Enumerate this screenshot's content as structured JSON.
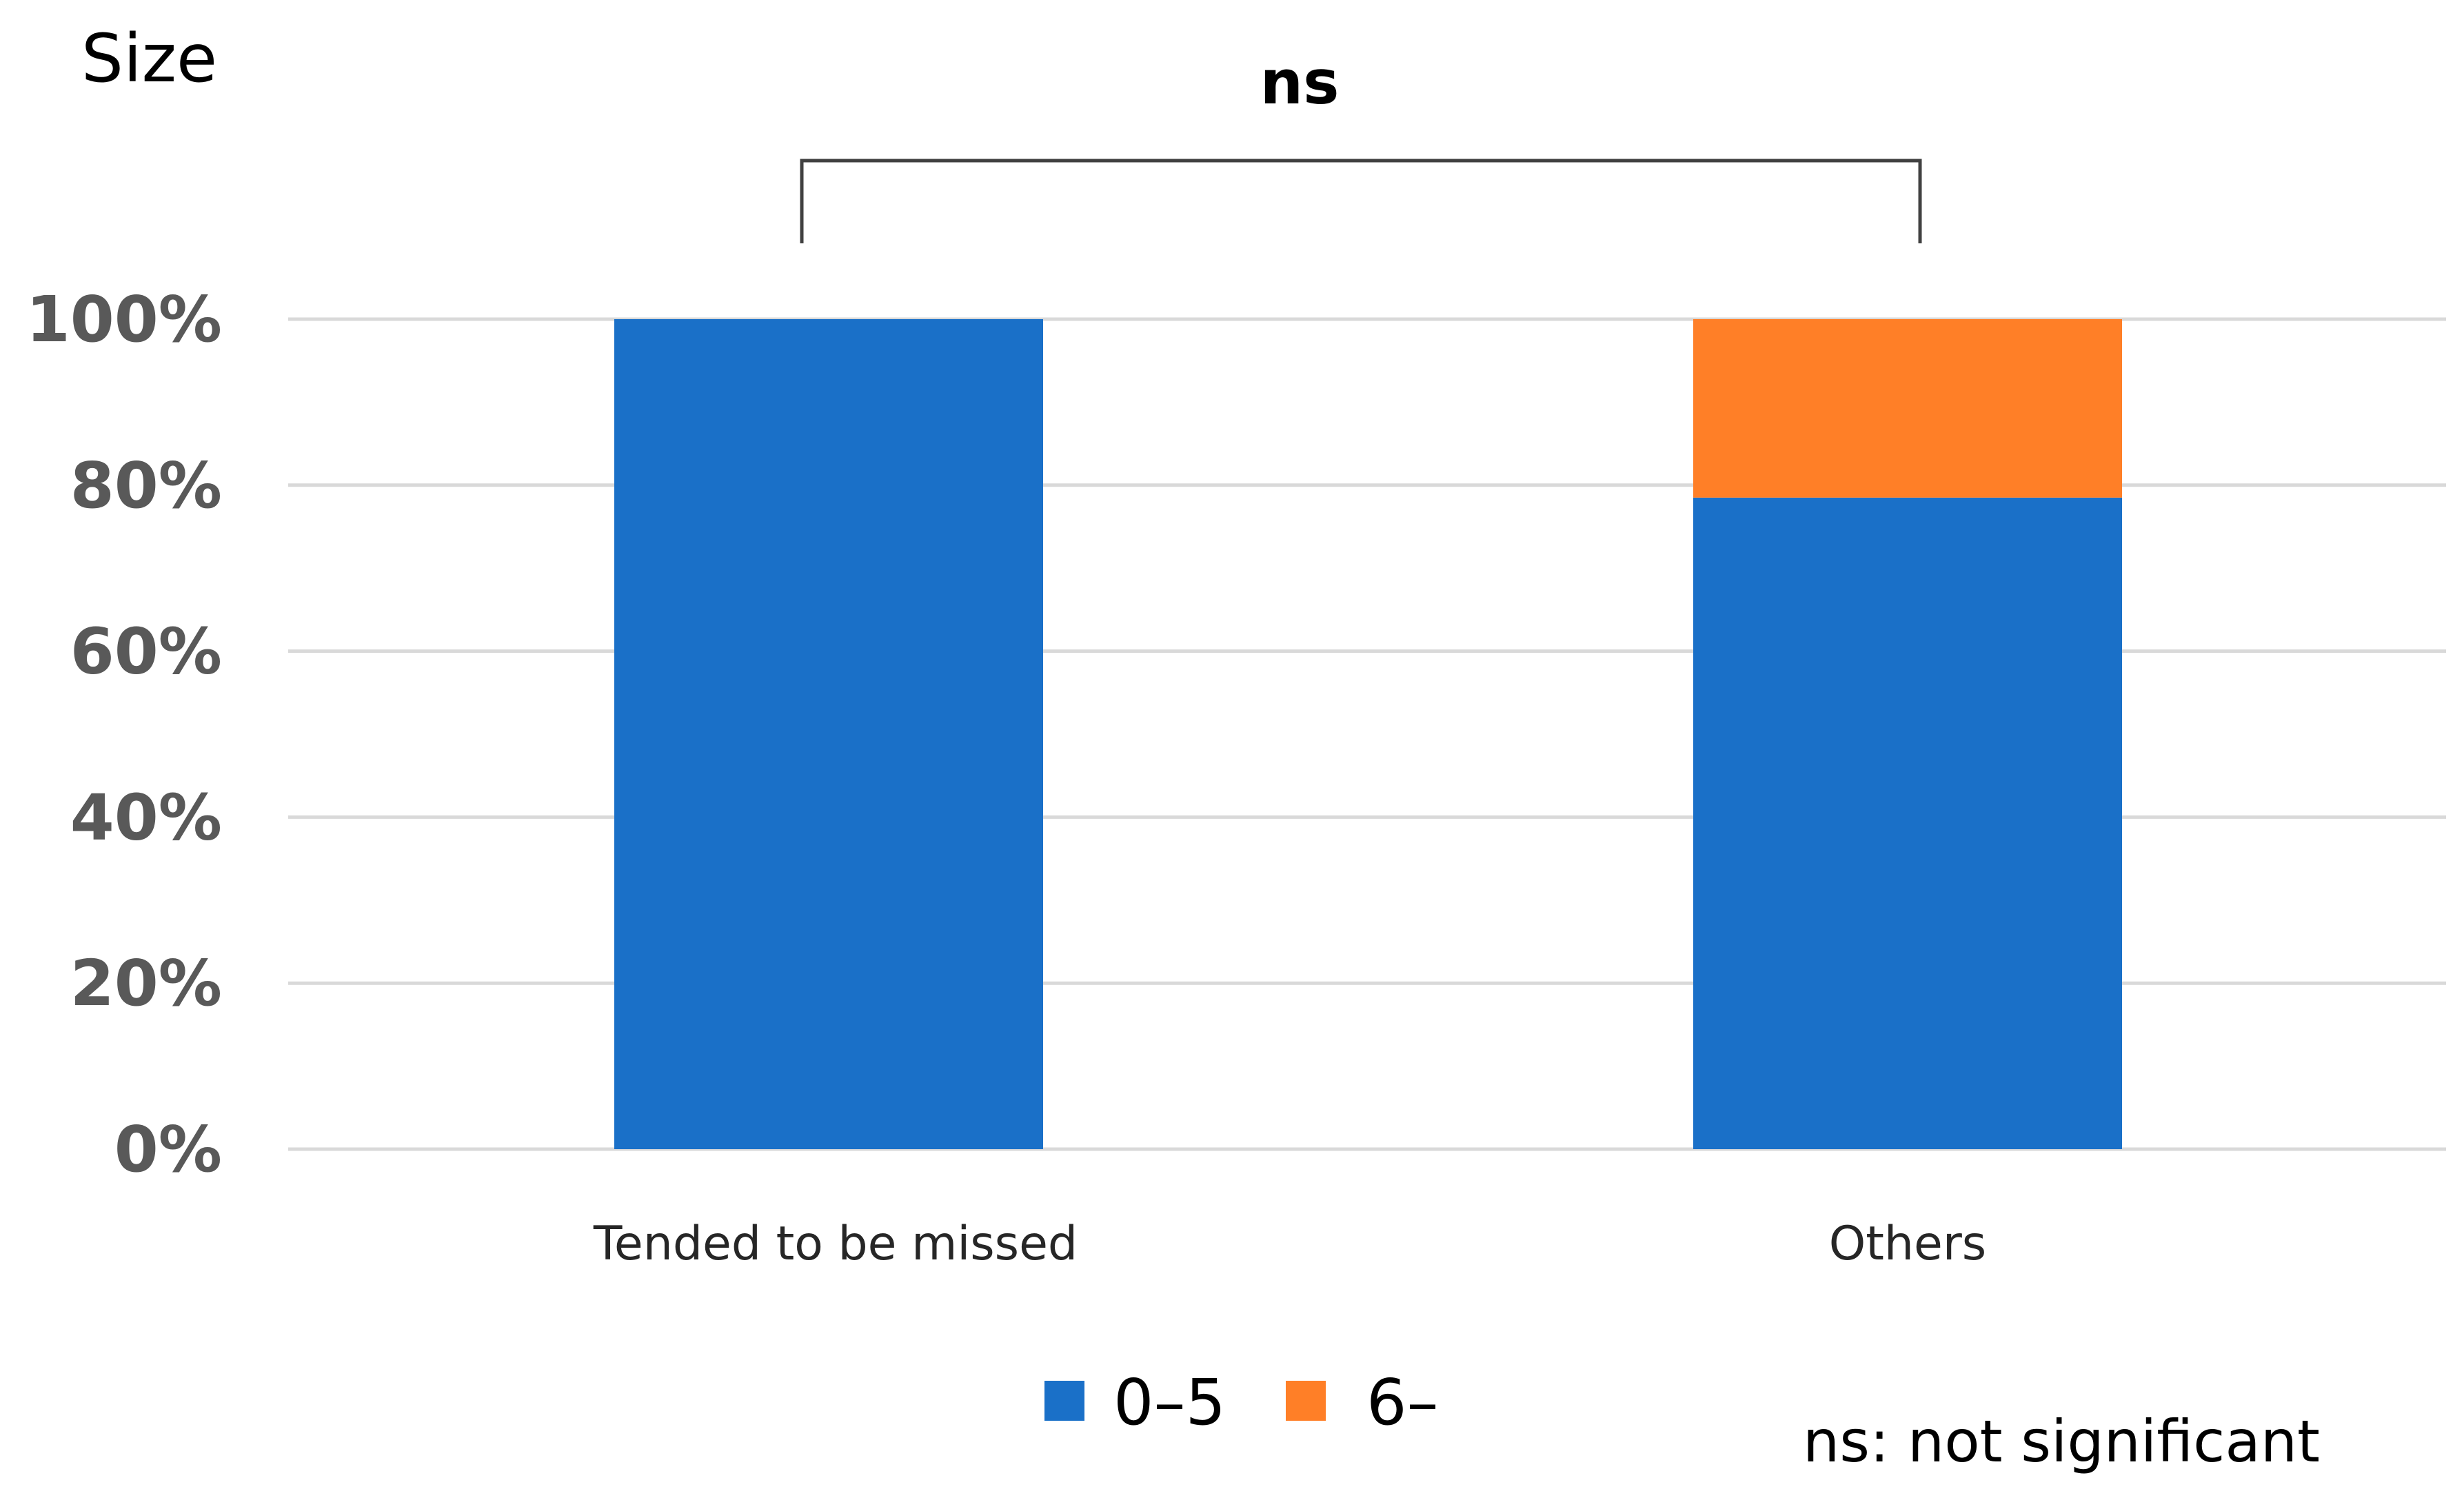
{
  "chart_data": {
    "type": "bar",
    "stacked": true,
    "ylabel": "Size",
    "xlabel": "",
    "ylim": [
      0,
      100
    ],
    "y_ticks": [
      "0%",
      "20%",
      "40%",
      "60%",
      "80%",
      "100%"
    ],
    "y_tick_values": [
      0,
      20,
      40,
      60,
      80,
      100
    ],
    "grid": true,
    "categories": [
      "Tended to be missed",
      "Others"
    ],
    "series": [
      {
        "name": "0–5",
        "values": [
          100,
          78.5
        ],
        "color": "#1a70c8"
      },
      {
        "name": "6–",
        "values": [
          0,
          21.5
        ],
        "color": "#ff7f27"
      }
    ],
    "significance": {
      "label": "ns",
      "between": [
        "Tended to be missed",
        "Others"
      ]
    },
    "legend_position": "bottom",
    "footnote": "ns: not significant"
  }
}
